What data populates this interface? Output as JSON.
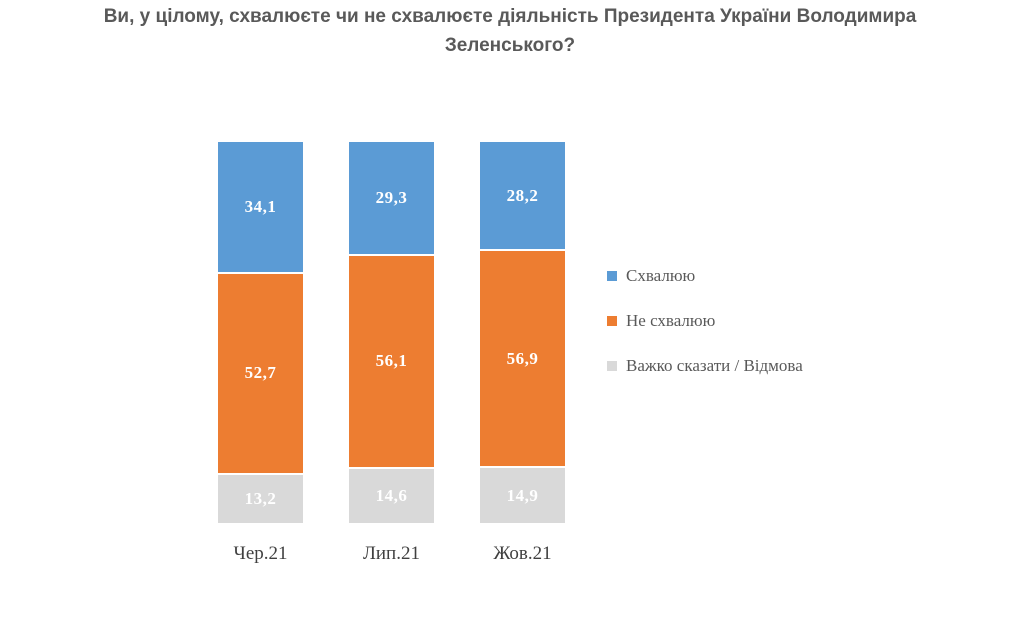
{
  "chart_data": {
    "type": "bar",
    "stacked": true,
    "percent_stacked": true,
    "title": "Ви, у цілому, схвалюєте чи не схвалюєте діяльність Президента України Володимира Зеленського?",
    "categories": [
      "Чер.21",
      "Лип.21",
      "Жов.21"
    ],
    "series": [
      {
        "name": "Схвалюю",
        "color": "#5B9BD5",
        "values": [
          34.1,
          29.3,
          28.2
        ],
        "display_labels": [
          "34,1",
          "29,3",
          "28,2"
        ]
      },
      {
        "name": "Не схвалюю",
        "color": "#ED7D31",
        "values": [
          52.7,
          56.1,
          56.9
        ],
        "display_labels": [
          "52,7",
          "56,1",
          "56,9"
        ]
      },
      {
        "name": "Важко сказати / Відмова",
        "color": "#D9D9D9",
        "values": [
          13.2,
          14.6,
          14.9
        ],
        "display_labels": [
          "13,2",
          "14,6",
          "14,9"
        ]
      }
    ],
    "legend_position": "right",
    "grid": false,
    "ylim": [
      0,
      100
    ],
    "value_label_color": "#FFFFFF",
    "background_color": "#FFFFFF"
  }
}
